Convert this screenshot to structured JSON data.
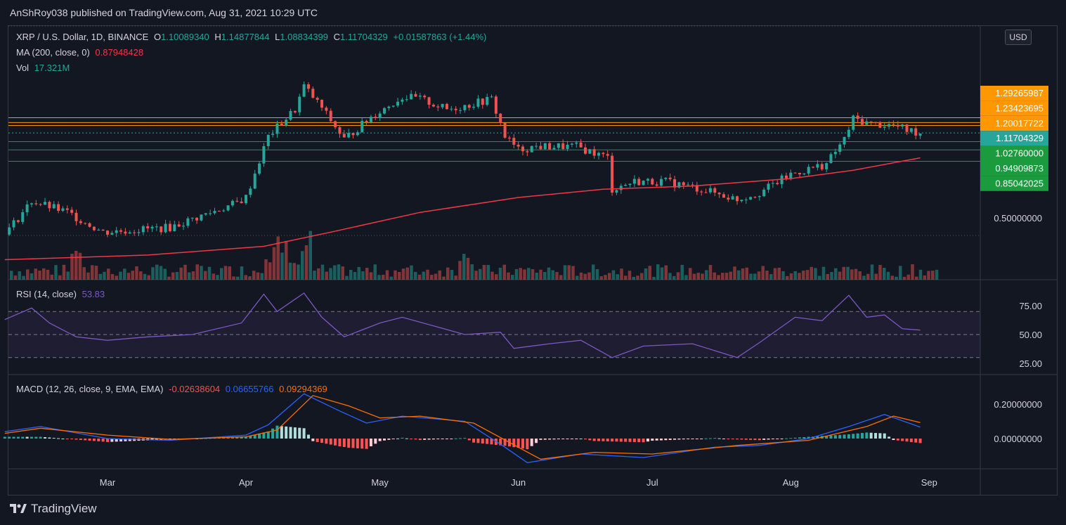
{
  "header": {
    "publisher": "AnShRoy038 published on TradingView.com, Aug 31, 2021 10:29 UTC"
  },
  "currency_button": "USD",
  "legend": {
    "symbol": "XRP / U.S. Dollar, 1D, BINANCE",
    "o_label": "O",
    "o_value": "1.10089340",
    "h_label": "H",
    "h_value": "1.14877844",
    "l_label": "L",
    "l_value": "1.08834399",
    "c_label": "C",
    "c_value": "1.11704329",
    "change": "+0.01587863 (+1.44%)",
    "ma_label": "MA (200, close, 0)",
    "ma_value": "0.87948428",
    "vol_label": "Vol",
    "vol_value": "17.321M",
    "rsi_label": "RSI (14, close)",
    "rsi_value": "53.83",
    "macd_label": "MACD (12, 26, close, 9, EMA, EMA)",
    "macd_hist": "-0.02638604",
    "macd_line": "0.06655766",
    "macd_signal": "0.09294369"
  },
  "footer": {
    "brand": "TradingView"
  },
  "colors": {
    "up": "#26a69a",
    "down": "#ef5350",
    "ma": "#f23645",
    "orange": "#ff9800",
    "green": "#1b9b3e",
    "teal_label": "#26a69a",
    "rsi": "#7e57c2",
    "macd": "#2962ff",
    "signal": "#ff6d00",
    "grid": "#2a2e39",
    "text": "#d1d4dc"
  },
  "chart_data": {
    "type": "candlestick",
    "symbol": "XRP / U.S. Dollar",
    "scale": "log",
    "x_labels": [
      "Mar",
      "Apr",
      "May",
      "Jun",
      "Jul",
      "Aug",
      "Sep"
    ],
    "x_label_dates": [
      "2021-03-01",
      "2021-04-01",
      "2021-05-01",
      "2021-06-01",
      "2021-07-01",
      "2021-08-01",
      "2021-09-01"
    ],
    "price_axis_labels": [
      "0.50000000"
    ],
    "price_range": [
      0.37,
      1.9
    ],
    "horizontal_levels": [
      {
        "value": 1.29265987,
        "color": "orange"
      },
      {
        "value": 1.23423695,
        "color": "orange"
      },
      {
        "value": 1.20017722,
        "color": "orange"
      },
      {
        "value": 1.11704329,
        "color": "teal",
        "dotted": true
      },
      {
        "value": 1.0276,
        "color": "green"
      },
      {
        "value": 0.94909873,
        "color": "green"
      },
      {
        "value": 0.85042025,
        "color": "green"
      }
    ],
    "price_labels": [
      "1.29265987",
      "1.23423695",
      "1.20017722",
      "1.11704329",
      "1.02760000",
      "0.94909873",
      "0.85042025"
    ],
    "price_series": [
      {
        "date": "2021-02-06",
        "close": 0.42
      },
      {
        "date": "2021-02-12",
        "close": 0.58
      },
      {
        "date": "2021-02-20",
        "close": 0.52
      },
      {
        "date": "2021-02-28",
        "close": 0.43
      },
      {
        "date": "2021-03-15",
        "close": 0.45
      },
      {
        "date": "2021-03-30",
        "close": 0.57
      },
      {
        "date": "2021-04-01",
        "close": 0.6
      },
      {
        "date": "2021-04-06",
        "close": 1.08
      },
      {
        "date": "2021-04-12",
        "close": 1.4
      },
      {
        "date": "2021-04-14",
        "close": 1.75
      },
      {
        "date": "2021-04-18",
        "close": 1.42
      },
      {
        "date": "2021-04-23",
        "close": 1.05
      },
      {
        "date": "2021-04-29",
        "close": 1.3
      },
      {
        "date": "2021-05-06",
        "close": 1.58
      },
      {
        "date": "2021-05-10",
        "close": 1.55
      },
      {
        "date": "2021-05-16",
        "close": 1.4
      },
      {
        "date": "2021-05-20",
        "close": 1.45
      },
      {
        "date": "2021-05-26",
        "close": 1.55
      },
      {
        "date": "2021-05-29",
        "close": 1.08
      },
      {
        "date": "2021-06-01",
        "close": 0.95
      },
      {
        "date": "2021-06-05",
        "close": 0.98
      },
      {
        "date": "2021-06-14",
        "close": 0.98
      },
      {
        "date": "2021-06-21",
        "close": 0.88
      },
      {
        "date": "2021-06-22",
        "close": 0.65
      },
      {
        "date": "2021-06-27",
        "close": 0.7
      },
      {
        "date": "2021-07-04",
        "close": 0.7
      },
      {
        "date": "2021-07-12",
        "close": 0.65
      },
      {
        "date": "2021-07-20",
        "close": 0.59
      },
      {
        "date": "2021-07-25",
        "close": 0.63
      },
      {
        "date": "2021-08-01",
        "close": 0.75
      },
      {
        "date": "2021-08-09",
        "close": 0.83
      },
      {
        "date": "2021-08-13",
        "close": 1.05
      },
      {
        "date": "2021-08-15",
        "close": 1.28
      },
      {
        "date": "2021-08-19",
        "close": 1.22
      },
      {
        "date": "2021-08-24",
        "close": 1.2
      },
      {
        "date": "2021-08-27",
        "close": 1.15
      },
      {
        "date": "2021-08-30",
        "close": 1.117
      }
    ],
    "ma200_series": [
      {
        "date": "2021-02-06",
        "value": 0.33
      },
      {
        "date": "2021-03-10",
        "value": 0.345
      },
      {
        "date": "2021-04-05",
        "value": 0.375
      },
      {
        "date": "2021-04-20",
        "value": 0.43
      },
      {
        "date": "2021-05-10",
        "value": 0.52
      },
      {
        "date": "2021-06-01",
        "value": 0.6
      },
      {
        "date": "2021-06-20",
        "value": 0.65
      },
      {
        "date": "2021-07-10",
        "value": 0.67
      },
      {
        "date": "2021-08-01",
        "value": 0.72
      },
      {
        "date": "2021-08-15",
        "value": 0.78
      },
      {
        "date": "2021-08-30",
        "value": 0.879
      }
    ],
    "volume_latest": "17.321M",
    "rsi": {
      "axis_labels": [
        "75.00",
        "50.00",
        "25.00"
      ],
      "levels": [
        70,
        50,
        30
      ],
      "latest": 53.83,
      "series": [
        {
          "date": "2021-02-06",
          "value": 63
        },
        {
          "date": "2021-02-12",
          "value": 73
        },
        {
          "date": "2021-02-16",
          "value": 60
        },
        {
          "date": "2021-02-22",
          "value": 48
        },
        {
          "date": "2021-03-01",
          "value": 45
        },
        {
          "date": "2021-03-10",
          "value": 48
        },
        {
          "date": "2021-03-20",
          "value": 50
        },
        {
          "date": "2021-03-31",
          "value": 60
        },
        {
          "date": "2021-04-05",
          "value": 85
        },
        {
          "date": "2021-04-08",
          "value": 70
        },
        {
          "date": "2021-04-14",
          "value": 86
        },
        {
          "date": "2021-04-18",
          "value": 65
        },
        {
          "date": "2021-04-23",
          "value": 48
        },
        {
          "date": "2021-05-01",
          "value": 60
        },
        {
          "date": "2021-05-06",
          "value": 65
        },
        {
          "date": "2021-05-20",
          "value": 50
        },
        {
          "date": "2021-05-28",
          "value": 52
        },
        {
          "date": "2021-05-31",
          "value": 38
        },
        {
          "date": "2021-06-08",
          "value": 42
        },
        {
          "date": "2021-06-15",
          "value": 45
        },
        {
          "date": "2021-06-22",
          "value": 30
        },
        {
          "date": "2021-06-29",
          "value": 40
        },
        {
          "date": "2021-07-10",
          "value": 42
        },
        {
          "date": "2021-07-20",
          "value": 30
        },
        {
          "date": "2021-07-25",
          "value": 43
        },
        {
          "date": "2021-08-02",
          "value": 65
        },
        {
          "date": "2021-08-08",
          "value": 62
        },
        {
          "date": "2021-08-14",
          "value": 84
        },
        {
          "date": "2021-08-18",
          "value": 65
        },
        {
          "date": "2021-08-22",
          "value": 67
        },
        {
          "date": "2021-08-26",
          "value": 55
        },
        {
          "date": "2021-08-30",
          "value": 53.83
        }
      ]
    },
    "macd": {
      "axis_labels": [
        "0.20000000",
        "0.00000000"
      ],
      "latest": {
        "histogram": -0.02638604,
        "macd": 0.06655766,
        "signal": 0.09294369
      },
      "macd_series": [
        {
          "date": "2021-02-06",
          "value": 0.04
        },
        {
          "date": "2021-02-14",
          "value": 0.07
        },
        {
          "date": "2021-03-01",
          "value": 0.0
        },
        {
          "date": "2021-03-15",
          "value": -0.01
        },
        {
          "date": "2021-04-01",
          "value": 0.02
        },
        {
          "date": "2021-04-06",
          "value": 0.08
        },
        {
          "date": "2021-04-14",
          "value": 0.26
        },
        {
          "date": "2021-04-22",
          "value": 0.16
        },
        {
          "date": "2021-04-28",
          "value": 0.09
        },
        {
          "date": "2021-05-06",
          "value": 0.13
        },
        {
          "date": "2021-05-20",
          "value": 0.1
        },
        {
          "date": "2021-05-29",
          "value": -0.05
        },
        {
          "date": "2021-06-03",
          "value": -0.14
        },
        {
          "date": "2021-06-15",
          "value": -0.09
        },
        {
          "date": "2021-06-29",
          "value": -0.11
        },
        {
          "date": "2021-07-15",
          "value": -0.05
        },
        {
          "date": "2021-07-25",
          "value": -0.04
        },
        {
          "date": "2021-08-05",
          "value": 0.0
        },
        {
          "date": "2021-08-14",
          "value": 0.07
        },
        {
          "date": "2021-08-22",
          "value": 0.14
        },
        {
          "date": "2021-08-30",
          "value": 0.0666
        }
      ],
      "signal_series": [
        {
          "date": "2021-02-06",
          "value": 0.03
        },
        {
          "date": "2021-02-14",
          "value": 0.06
        },
        {
          "date": "2021-03-01",
          "value": 0.02
        },
        {
          "date": "2021-03-15",
          "value": -0.005
        },
        {
          "date": "2021-04-01",
          "value": 0.01
        },
        {
          "date": "2021-04-08",
          "value": 0.05
        },
        {
          "date": "2021-04-16",
          "value": 0.25
        },
        {
          "date": "2021-04-24",
          "value": 0.19
        },
        {
          "date": "2021-05-01",
          "value": 0.12
        },
        {
          "date": "2021-05-10",
          "value": 0.13
        },
        {
          "date": "2021-05-22",
          "value": 0.09
        },
        {
          "date": "2021-06-01",
          "value": -0.05
        },
        {
          "date": "2021-06-06",
          "value": -0.12
        },
        {
          "date": "2021-06-18",
          "value": -0.08
        },
        {
          "date": "2021-07-01",
          "value": -0.09
        },
        {
          "date": "2021-07-20",
          "value": -0.04
        },
        {
          "date": "2021-08-05",
          "value": -0.01
        },
        {
          "date": "2021-08-18",
          "value": 0.07
        },
        {
          "date": "2021-08-24",
          "value": 0.13
        },
        {
          "date": "2021-08-30",
          "value": 0.0929
        }
      ]
    }
  }
}
